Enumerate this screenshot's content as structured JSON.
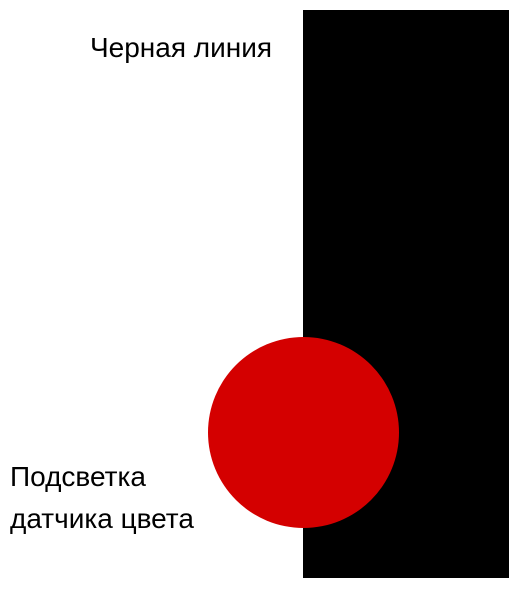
{
  "labels": {
    "black_line": "Черная линия",
    "sensor_light_line1": "Подсветка",
    "sensor_light_line2": "датчика цвета"
  },
  "colors": {
    "black_line": "#000000",
    "sensor_light": "#d40000",
    "background": "#ffffff",
    "text": "#000000"
  }
}
